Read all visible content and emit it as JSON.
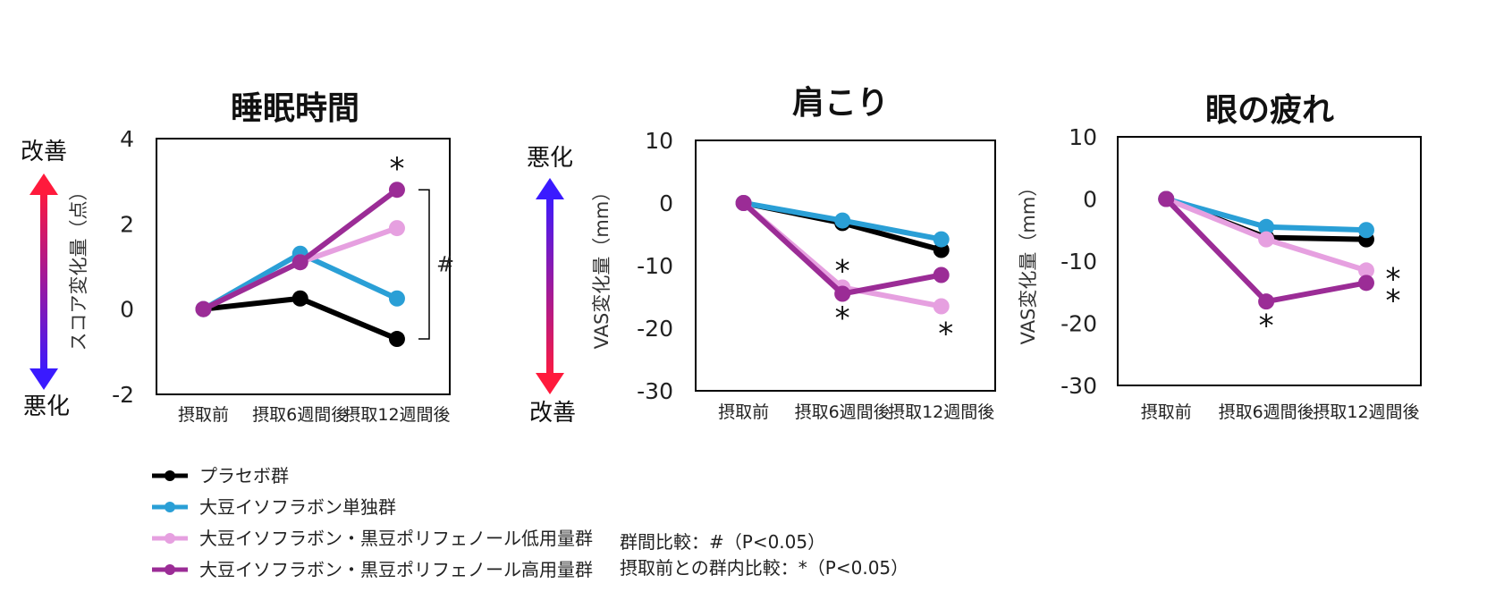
{
  "chart_data": [
    {
      "type": "line",
      "title": "睡眠時間",
      "ylabel": "スコア変化量（点）",
      "ylim": [
        -2,
        4
      ],
      "yticks": [
        "4",
        "2",
        "0",
        "-2"
      ],
      "categories": [
        "摂取前",
        "摂取6週間後",
        "摂取12週間後"
      ],
      "arrow": {
        "top_label": "改善",
        "bottom_label": "悪化",
        "direction": "up",
        "top_color": "#ff1a3c",
        "bottom_color": "#3a1aff"
      },
      "series": [
        {
          "name": "プラセボ群",
          "color": "#000000",
          "values": [
            0,
            0.25,
            -0.7
          ]
        },
        {
          "name": "大豆イソフラボン単独群",
          "color": "#2a9fd6",
          "values": [
            0,
            1.3,
            0.25
          ]
        },
        {
          "name": "大豆イソフラボン・黒豆ポリフェノール低用量群",
          "color": "#e6a0e0",
          "values": [
            0,
            1.1,
            1.9
          ]
        },
        {
          "name": "大豆イソフラボン・黒豆ポリフェノール高用量群",
          "color": "#9b2c96",
          "values": [
            0,
            1.1,
            2.8
          ]
        }
      ],
      "annotations": [
        {
          "text": "*",
          "x": "摂取12週間後",
          "y": 3.35
        },
        {
          "text": "#",
          "bracket": [
            -0.7,
            2.8
          ]
        }
      ]
    },
    {
      "type": "line",
      "title": "肩こり",
      "ylabel": "VAS変化量（mm）",
      "ylim": [
        -30,
        10
      ],
      "yticks": [
        "10",
        "0",
        "-10",
        "-20",
        "-30"
      ],
      "categories": [
        "摂取前",
        "摂取6週間後",
        "摂取12週間後"
      ],
      "arrow": {
        "top_label": "悪化",
        "bottom_label": "改善",
        "direction": "down",
        "top_color": "#3a1aff",
        "bottom_color": "#ff1a3c"
      },
      "series": [
        {
          "name": "プラセボ群",
          "color": "#000000",
          "values": [
            0,
            -3.2,
            -7.5
          ]
        },
        {
          "name": "大豆イソフラボン単独群",
          "color": "#2a9fd6",
          "values": [
            0,
            -2.8,
            -5.8
          ]
        },
        {
          "name": "大豆イソフラボン・黒豆ポリフェノール低用量群",
          "color": "#e6a0e0",
          "values": [
            0,
            -13.5,
            -16.5
          ]
        },
        {
          "name": "大豆イソフラボン・黒豆ポリフェノール高用量群",
          "color": "#9b2c96",
          "values": [
            0,
            -14.5,
            -11.5
          ]
        }
      ],
      "annotations": [
        {
          "text": "*",
          "x": "摂取6週間後",
          "y": -10.5
        },
        {
          "text": "*",
          "x": "摂取6週間後",
          "y": -18
        },
        {
          "text": "*",
          "x": "摂取12週間後",
          "y": -20.5
        }
      ]
    },
    {
      "type": "line",
      "title": "眼の疲れ",
      "ylabel": "VAS変化量（mm）",
      "ylim": [
        -30,
        10
      ],
      "yticks": [
        "10",
        "0",
        "-10",
        "-20",
        "-30"
      ],
      "categories": [
        "摂取前",
        "摂取6週間後",
        "摂取12週間後"
      ],
      "series": [
        {
          "name": "プラセボ群",
          "color": "#000000",
          "values": [
            0,
            -6.2,
            -6.5
          ]
        },
        {
          "name": "大豆イソフラボン単独群",
          "color": "#2a9fd6",
          "values": [
            0,
            -4.5,
            -5.0
          ]
        },
        {
          "name": "大豆イソフラボン・黒豆ポリフェノール低用量群",
          "color": "#e6a0e0",
          "values": [
            0,
            -6.5,
            -11.5
          ]
        },
        {
          "name": "大豆イソフラボン・黒豆ポリフェノール高用量群",
          "color": "#9b2c96",
          "values": [
            0,
            -16.5,
            -13.5
          ]
        }
      ],
      "annotations": [
        {
          "text": "*",
          "x": "摂取6週間後",
          "y": -20
        },
        {
          "text": "*",
          "x": "摂取12週間後",
          "y": -12.5
        },
        {
          "text": "*",
          "x": "摂取12週間後",
          "y": -16
        }
      ]
    }
  ],
  "legend": [
    {
      "label": "プラセボ群",
      "color": "#000000"
    },
    {
      "label": "大豆イソフラボン単独群",
      "color": "#2a9fd6"
    },
    {
      "label": "大豆イソフラボン・黒豆ポリフェノール低用量群",
      "color": "#e6a0e0"
    },
    {
      "label": "大豆イソフラボン・黒豆ポリフェノール高用量群",
      "color": "#9b2c96"
    }
  ],
  "notes": {
    "between_group": "群間比較：#（P<0.05）",
    "within_group": "摂取前との群内比較：*（P<0.05）"
  }
}
